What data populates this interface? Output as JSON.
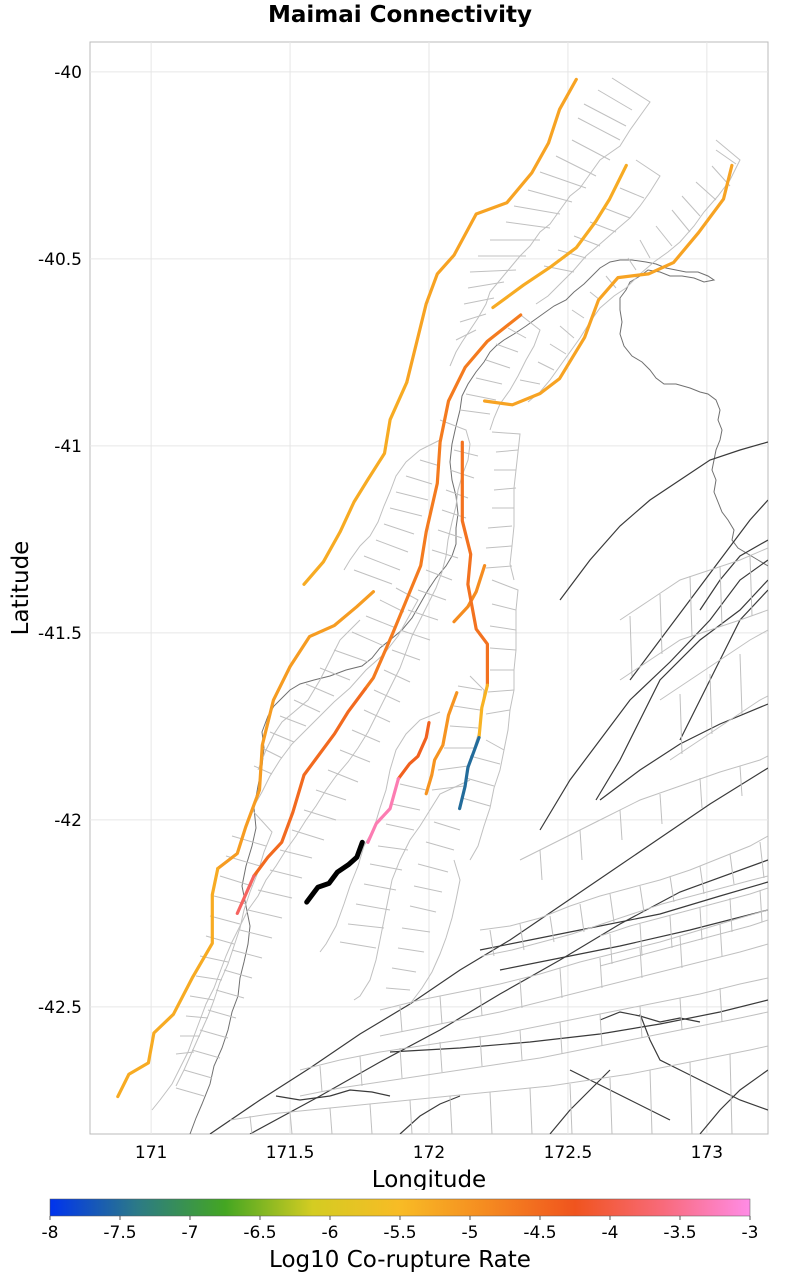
{
  "title": "Maimai Connectivity",
  "chart_data": {
    "type": "map",
    "title": "Maimai Connectivity",
    "xlabel": "Longitude",
    "ylabel": "Latitude",
    "xlim": [
      170.78,
      173.22
    ],
    "ylim": [
      -42.84,
      -39.92
    ],
    "xticks": [
      171,
      171.5,
      172,
      172.5,
      173
    ],
    "xtick_labels": [
      "171",
      "171.5",
      "172",
      "172.5",
      "173"
    ],
    "yticks": [
      -40,
      -40.5,
      -41,
      -41.5,
      -42,
      -42.5
    ],
    "ytick_labels": [
      "-40",
      "-40.5",
      "-41",
      "-41.5",
      "-42",
      "-42.5"
    ],
    "grid": true,
    "colorbar": {
      "label": "Log10 Co-rupture Rate",
      "min": -8,
      "max": -3,
      "ticks": [
        -8,
        -7.5,
        -7,
        -6.5,
        -6,
        -5.5,
        -5,
        -4.5,
        -4,
        -3.5,
        -3
      ],
      "tick_labels": [
        "-8",
        "-7.5",
        "-7",
        "-6.5",
        "-6",
        "-5.5",
        "-5",
        "-4.5",
        "-4",
        "-3.5",
        "-3"
      ],
      "colors": [
        "#0033ee",
        "#2c7a86",
        "#44a622",
        "#d4cc22",
        "#f8bb25",
        "#f58a20",
        "#f0541e",
        "#f86a7a",
        "#ff8ce6"
      ]
    },
    "source_fault": {
      "name": "Maimai",
      "color": "#000000",
      "points": [
        [
          171.56,
          -42.22
        ],
        [
          171.6,
          -42.18
        ],
        [
          171.64,
          -42.17
        ],
        [
          171.67,
          -42.14
        ],
        [
          171.71,
          -42.12
        ],
        [
          171.74,
          -42.1
        ],
        [
          171.76,
          -42.06
        ]
      ]
    },
    "colored_faults": [
      {
        "rate": -5.2,
        "points": [
          [
            172.53,
            -40.02
          ],
          [
            172.47,
            -40.1
          ],
          [
            172.43,
            -40.19
          ],
          [
            172.37,
            -40.27
          ],
          [
            172.28,
            -40.35
          ],
          [
            172.17,
            -40.38
          ],
          [
            172.09,
            -40.49
          ],
          [
            172.03,
            -40.54
          ],
          [
            171.99,
            -40.62
          ],
          [
            171.92,
            -40.83
          ]
        ]
      },
      {
        "rate": -5.3,
        "points": [
          [
            171.92,
            -40.83
          ],
          [
            171.86,
            -40.93
          ],
          [
            171.84,
            -41.02
          ],
          [
            171.78,
            -41.09
          ],
          [
            171.73,
            -41.15
          ],
          [
            171.68,
            -41.23
          ],
          [
            171.62,
            -41.31
          ],
          [
            171.55,
            -41.37
          ]
        ]
      },
      {
        "rate": -5.1,
        "points": [
          [
            171.8,
            -41.39
          ],
          [
            171.74,
            -41.43
          ],
          [
            171.66,
            -41.48
          ],
          [
            171.57,
            -41.51
          ],
          [
            171.5,
            -41.59
          ],
          [
            171.44,
            -41.68
          ],
          [
            171.4,
            -41.8
          ],
          [
            171.39,
            -41.92
          ],
          [
            171.34,
            -42.02
          ],
          [
            171.31,
            -42.09
          ],
          [
            171.24,
            -42.13
          ]
        ]
      },
      {
        "rate": -5.3,
        "points": [
          [
            171.24,
            -42.13
          ],
          [
            171.22,
            -42.2
          ],
          [
            171.22,
            -42.33
          ],
          [
            171.15,
            -42.42
          ],
          [
            171.08,
            -42.52
          ],
          [
            171.01,
            -42.57
          ],
          [
            170.99,
            -42.65
          ],
          [
            170.92,
            -42.68
          ],
          [
            170.88,
            -42.74
          ]
        ]
      },
      {
        "rate": -5.3,
        "points": [
          [
            172.23,
            -40.63
          ],
          [
            172.34,
            -40.57
          ],
          [
            172.44,
            -40.52
          ],
          [
            172.53,
            -40.47
          ],
          [
            172.6,
            -40.4
          ],
          [
            172.65,
            -40.34
          ],
          [
            172.71,
            -40.25
          ]
        ]
      },
      {
        "rate": -5.2,
        "points": [
          [
            173.09,
            -40.25
          ],
          [
            173.06,
            -40.34
          ],
          [
            172.97,
            -40.43
          ],
          [
            172.88,
            -40.51
          ],
          [
            172.79,
            -40.54
          ],
          [
            172.68,
            -40.55
          ],
          [
            172.61,
            -40.61
          ],
          [
            172.56,
            -40.71
          ],
          [
            172.47,
            -40.82
          ],
          [
            172.4,
            -40.86
          ],
          [
            172.3,
            -40.89
          ],
          [
            172.2,
            -40.88
          ]
        ]
      },
      {
        "rate": -4.7,
        "points": [
          [
            172.33,
            -40.65
          ],
          [
            172.21,
            -40.72
          ],
          [
            172.13,
            -40.79
          ],
          [
            172.07,
            -40.88
          ],
          [
            172.04,
            -40.99
          ],
          [
            172.03,
            -41.1
          ],
          [
            171.99,
            -41.23
          ],
          [
            171.97,
            -41.32
          ],
          [
            171.92,
            -41.41
          ],
          [
            171.87,
            -41.5
          ],
          [
            171.8,
            -41.62
          ],
          [
            171.77,
            -41.65
          ]
        ]
      },
      {
        "rate": -4.5,
        "points": [
          [
            171.77,
            -41.65
          ],
          [
            171.71,
            -41.71
          ],
          [
            171.66,
            -41.77
          ],
          [
            171.59,
            -41.84
          ],
          [
            171.55,
            -41.88
          ],
          [
            171.51,
            -41.98
          ],
          [
            171.47,
            -42.06
          ],
          [
            171.42,
            -42.1
          ],
          [
            171.37,
            -42.15
          ]
        ]
      },
      {
        "rate": -3.8,
        "points": [
          [
            171.37,
            -42.15
          ],
          [
            171.31,
            -42.25
          ]
        ]
      },
      {
        "rate": -4.4,
        "points": [
          [
            172.0,
            -41.74
          ],
          [
            171.99,
            -41.78
          ],
          [
            171.96,
            -41.83
          ],
          [
            171.93,
            -41.85
          ],
          [
            171.89,
            -41.89
          ]
        ]
      },
      {
        "rate": -3.3,
        "points": [
          [
            171.89,
            -41.89
          ],
          [
            171.86,
            -41.97
          ],
          [
            171.81,
            -42.01
          ],
          [
            171.78,
            -42.06
          ]
        ]
      },
      {
        "rate": -4.9,
        "points": [
          [
            172.2,
            -41.32
          ],
          [
            172.17,
            -41.39
          ],
          [
            172.14,
            -41.43
          ],
          [
            172.09,
            -41.47
          ]
        ]
      },
      {
        "rate": -4.6,
        "points": [
          [
            172.12,
            -40.99
          ],
          [
            172.12,
            -41.1
          ],
          [
            172.12,
            -41.2
          ],
          [
            172.15,
            -41.29
          ],
          [
            172.14,
            -41.37
          ],
          [
            172.17,
            -41.49
          ],
          [
            172.21,
            -41.53
          ],
          [
            172.21,
            -41.58
          ],
          [
            172.21,
            -41.64
          ]
        ]
      },
      {
        "rate": -5.0,
        "points": [
          [
            172.1,
            -41.66
          ],
          [
            172.07,
            -41.72
          ],
          [
            172.05,
            -41.8
          ],
          [
            172.02,
            -41.84
          ],
          [
            172.01,
            -41.88
          ],
          [
            171.99,
            -41.93
          ]
        ]
      },
      {
        "rate": -5.4,
        "points": [
          [
            172.21,
            -41.64
          ],
          [
            172.19,
            -41.7
          ],
          [
            172.18,
            -41.78
          ]
        ]
      },
      {
        "rate": -7.5,
        "points": [
          [
            172.18,
            -41.78
          ],
          [
            172.16,
            -41.82
          ],
          [
            172.14,
            -41.86
          ],
          [
            172.13,
            -41.91
          ],
          [
            172.11,
            -41.97
          ]
        ]
      }
    ]
  }
}
